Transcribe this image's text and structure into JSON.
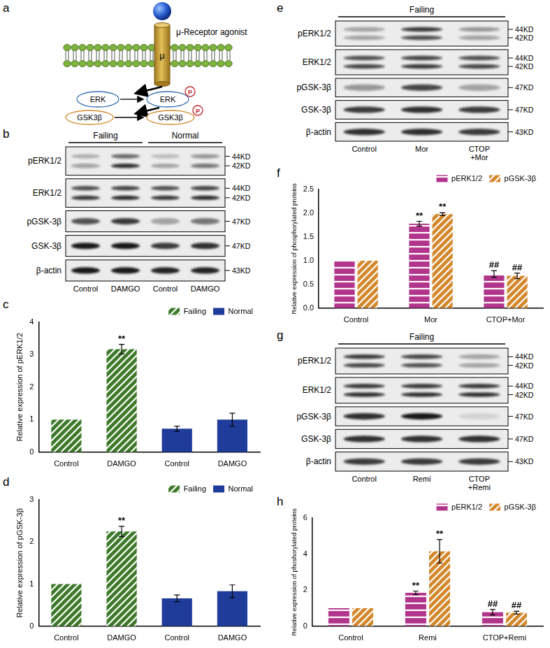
{
  "schematic": {
    "letter": "a",
    "agonist": "μ-Receptor agonist",
    "receptor": "μ",
    "nodes": [
      "ERK",
      "ERK",
      "GSK3β",
      "GSK3β"
    ],
    "phospho": "P"
  },
  "blots": [
    {
      "letter": "b",
      "groups": [
        {
          "label": "Failing",
          "lanes": [
            "Control",
            "DAMGO"
          ]
        },
        {
          "label": "Normal",
          "lanes": [
            "Control",
            "DAMGO"
          ]
        }
      ],
      "rows": [
        {
          "label": "pERK1/2",
          "mw": [
            "44KD",
            "42KD"
          ],
          "bands": [
            [
              0.25,
              0.6,
              0.2,
              0.4
            ],
            [
              0.35,
              0.85,
              0.3,
              0.55
            ]
          ]
        },
        {
          "label": "ERK1/2",
          "mw": [
            "44KD",
            "42KD"
          ],
          "bands": [
            [
              0.7,
              0.75,
              0.7,
              0.75
            ],
            [
              0.8,
              0.85,
              0.8,
              0.85
            ]
          ]
        },
        {
          "label": "pGSK-3β",
          "mw": [
            "47KD"
          ],
          "bands": [
            [
              0.7,
              0.8,
              0.35,
              0.55
            ]
          ]
        },
        {
          "label": "GSK-3β",
          "mw": [
            "47KD"
          ],
          "bands": [
            [
              0.95,
              0.95,
              0.8,
              0.85
            ]
          ]
        },
        {
          "label": "β-actin",
          "mw": [
            "43KD"
          ],
          "bands": [
            [
              0.95,
              0.95,
              0.9,
              0.9
            ]
          ]
        }
      ]
    },
    {
      "letter": "e",
      "groups": [
        {
          "label": "Failing",
          "lanes": [
            "Control",
            "Mor",
            [
              "CTOP",
              "+Mor"
            ]
          ]
        }
      ],
      "rows": [
        {
          "label": "pERK1/2",
          "mw": [
            "44KD",
            "42KD"
          ],
          "bands": [
            [
              0.35,
              0.8,
              0.4
            ],
            [
              0.3,
              0.7,
              0.35
            ]
          ]
        },
        {
          "label": "ERK1/2",
          "mw": [
            "44KD",
            "42KD"
          ],
          "bands": [
            [
              0.7,
              0.75,
              0.7
            ],
            [
              0.75,
              0.8,
              0.75
            ]
          ]
        },
        {
          "label": "pGSK-3β",
          "mw": [
            "47KD"
          ],
          "bands": [
            [
              0.4,
              0.75,
              0.35
            ]
          ]
        },
        {
          "label": "GSK-3β",
          "mw": [
            "47KD"
          ],
          "bands": [
            [
              0.8,
              0.85,
              0.8
            ]
          ]
        },
        {
          "label": "β-actin",
          "mw": [
            "43KD"
          ],
          "bands": [
            [
              0.85,
              0.85,
              0.8
            ]
          ]
        }
      ]
    },
    {
      "letter": "g",
      "groups": [
        {
          "label": "Failing",
          "lanes": [
            "Control",
            "Remi",
            [
              "CTOP",
              "+Remi"
            ]
          ]
        }
      ],
      "rows": [
        {
          "label": "pERK1/2",
          "mw": [
            "44KD",
            "42KD"
          ],
          "bands": [
            [
              0.8,
              0.75,
              0.35
            ],
            [
              0.75,
              0.7,
              0.35
            ]
          ]
        },
        {
          "label": "ERK1/2",
          "mw": [
            "44KD",
            "42KD"
          ],
          "bands": [
            [
              0.8,
              0.8,
              0.8
            ],
            [
              0.85,
              0.85,
              0.85
            ]
          ]
        },
        {
          "label": "pGSK-3β",
          "mw": [
            "47KD"
          ],
          "bands": [
            [
              0.85,
              0.95,
              0.1
            ]
          ]
        },
        {
          "label": "GSK-3β",
          "mw": [
            "47KD"
          ],
          "bands": [
            [
              0.85,
              0.85,
              0.85
            ]
          ]
        },
        {
          "label": "β-actin",
          "mw": [
            "43KD"
          ],
          "bands": [
            [
              0.8,
              0.8,
              0.8
            ]
          ]
        }
      ]
    }
  ],
  "chart_data": [
    {
      "letter": "c",
      "type": "bar",
      "y_label": "Relative expression of pERK1/2",
      "categories": [
        "Control",
        "DAMGO",
        "Control",
        "DAMGO"
      ],
      "series": [
        {
          "name": "Failing",
          "color": "#3d7a2a",
          "values": [
            1,
            3.17,
            null,
            null
          ],
          "errors": [
            null,
            0.15,
            null,
            null
          ],
          "marks": [
            null,
            "**",
            null,
            null
          ]
        },
        {
          "name": "Normal",
          "color": "#1f3c9a",
          "values": [
            null,
            null,
            0.72,
            1.0
          ],
          "errors": [
            null,
            null,
            0.08,
            0.2
          ],
          "marks": [
            null,
            null,
            null,
            null
          ]
        }
      ],
      "ylim": [
        0,
        4
      ],
      "yticks": [
        0,
        1,
        2,
        3,
        4
      ],
      "legend": "upper right",
      "grid": false
    },
    {
      "letter": "d",
      "type": "bar",
      "y_label": "Relative expression of pGSK-3β",
      "categories": [
        "Control",
        "DAMGO",
        "Control",
        "DAMGO"
      ],
      "series": [
        {
          "name": "Failing",
          "color": "#3d7a2a",
          "values": [
            1,
            2.25,
            null,
            null
          ],
          "errors": [
            null,
            0.12,
            null,
            null
          ],
          "marks": [
            null,
            "**",
            null,
            null
          ]
        },
        {
          "name": "Normal",
          "color": "#1f3c9a",
          "values": [
            null,
            null,
            0.66,
            0.83
          ],
          "errors": [
            null,
            null,
            0.08,
            0.15
          ],
          "marks": [
            null,
            null,
            null,
            null
          ]
        }
      ],
      "ylim": [
        0,
        3
      ],
      "yticks": [
        0,
        1,
        2,
        3
      ],
      "legend": "upper right",
      "grid": false
    },
    {
      "letter": "f",
      "type": "bar",
      "y_label": "Relative expression of phosphorylated proteins",
      "categories": [
        "Control",
        "Mor",
        "CTOP+Mor"
      ],
      "series": [
        {
          "name": "pERK1/2",
          "color": "#b2358c",
          "values": [
            1,
            1.78,
            0.72
          ],
          "errors": [
            null,
            0.05,
            0.07
          ],
          "marks": [
            null,
            "**",
            "##"
          ]
        },
        {
          "name": "pGSK-3β",
          "color": "#d4882c",
          "values": [
            1,
            1.98,
            0.68
          ],
          "errors": [
            null,
            0.03,
            0.06
          ],
          "marks": [
            null,
            "**",
            "##"
          ]
        }
      ],
      "ylim": [
        0,
        2.5
      ],
      "yticks": [
        {
          "value": 0,
          "label": "0.0"
        },
        {
          "value": 0.5,
          "label": "0.5"
        },
        {
          "value": 1,
          "label": "1.0"
        },
        {
          "value": 1.5,
          "label": "1.5"
        },
        {
          "value": 2,
          "label": "2.0"
        },
        {
          "value": 2.5,
          "label": "2.5"
        }
      ],
      "legend": "upper right",
      "grid": false
    },
    {
      "letter": "h",
      "type": "bar",
      "y_label": "Relative expression of phoshorylated proteins",
      "categories": [
        "Control",
        "Remi",
        "CTOP+Remi"
      ],
      "series": [
        {
          "name": "pERK1/2",
          "color": "#b2358c",
          "values": [
            1,
            1.85,
            0.78
          ],
          "errors": [
            null,
            0.1,
            0.15
          ],
          "marks": [
            null,
            "**",
            "##"
          ]
        },
        {
          "name": "pGSK-3β",
          "color": "#d4882c",
          "values": [
            1,
            4.15,
            0.75
          ],
          "errors": [
            null,
            0.65,
            0.08
          ],
          "marks": [
            null,
            "**",
            "##"
          ]
        }
      ],
      "ylim": [
        0,
        6
      ],
      "yticks": [
        0,
        2,
        4,
        6
      ],
      "legend": "upper right",
      "grid": false
    }
  ]
}
